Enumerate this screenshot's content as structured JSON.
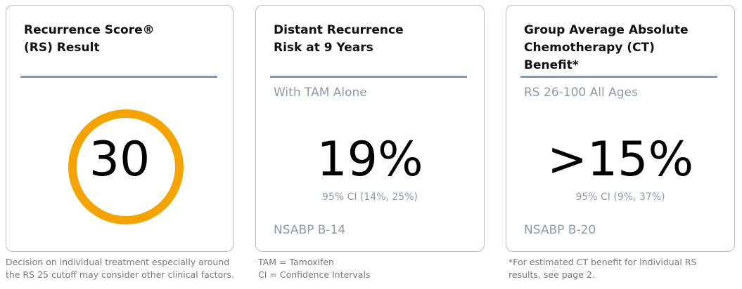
{
  "cards": [
    {
      "title": [
        "Recurrence Score®",
        "(RS) Result"
      ],
      "value": "30"
    },
    {
      "title": [
        "Distant Recurrence",
        "Risk at 9 Years"
      ],
      "subtitle": "With TAM Alone",
      "value": "19%",
      "ci": "95% CI (14%, 25%)",
      "source": "NSABP B-14"
    },
    {
      "title": [
        "Group Average Absolute",
        "Chemotherapy (CT)",
        "Benefit*"
      ],
      "subtitle": "RS 26-100 All Ages",
      "value": ">15%",
      "ci": "95% CI (9%, 37%)",
      "source": "NSABP B-20"
    }
  ],
  "footnotes": [
    [
      "Decision on individual treatment especially around",
      "the RS 25 cutoff may consider other clinical factors."
    ],
    [
      "TAM = Tamoxifen",
      "CI = Confidence Intervals"
    ],
    [
      "*For estimated CT benefit for individual RS",
      "results, see page 2."
    ]
  ]
}
